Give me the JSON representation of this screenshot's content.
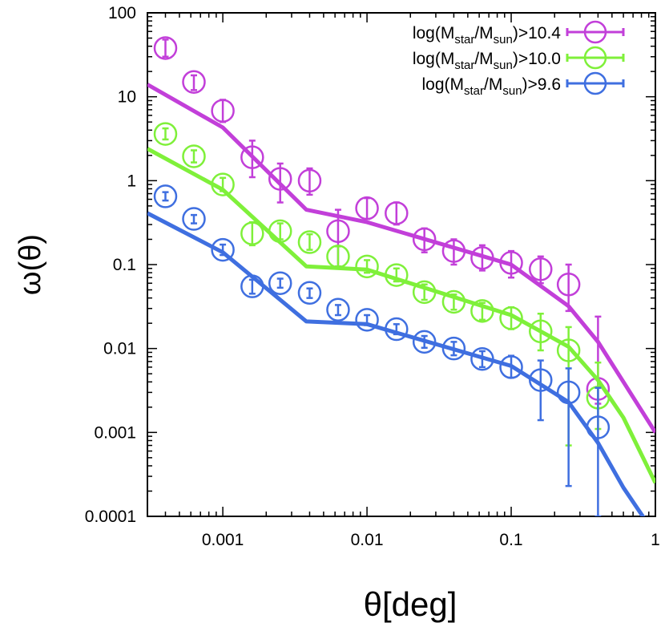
{
  "chart_data": {
    "type": "scatter",
    "title": "",
    "xlabel": "θ[deg]",
    "ylabel": "ω(θ)",
    "xscale": "log",
    "yscale": "log",
    "xlim": [
      0.0003,
      1
    ],
    "ylim": [
      0.0001,
      100
    ],
    "grid": false,
    "legend_position": "top-right",
    "x_ticks": [
      {
        "value": 0.001,
        "label": "0.001"
      },
      {
        "value": 0.01,
        "label": "0.01"
      },
      {
        "value": 0.1,
        "label": "0.1"
      },
      {
        "value": 1,
        "label": "1"
      }
    ],
    "y_ticks": [
      {
        "value": 100,
        "label": "100"
      },
      {
        "value": 10,
        "label": "10"
      },
      {
        "value": 1,
        "label": "1"
      },
      {
        "value": 0.1,
        "label": "0.1"
      },
      {
        "value": 0.01,
        "label": "0.01"
      },
      {
        "value": 0.001,
        "label": "0.001"
      },
      {
        "value": 0.0001,
        "label": "0.0001"
      }
    ],
    "series": [
      {
        "name": "log(Mstar/Msun)>10.4",
        "label_main": "log(M",
        "label_sub1": "star",
        "label_mid": "/M",
        "label_sub2": "sun",
        "label_end": ")>10.4",
        "color": "#c23fd9",
        "points": [
          {
            "x": 0.0004,
            "y": 38,
            "lo": 30,
            "hi": 48
          },
          {
            "x": 0.00063,
            "y": 15,
            "lo": 12,
            "hi": 18
          },
          {
            "x": 0.001,
            "y": 6.8,
            "lo": 5.0,
            "hi": 9.2
          },
          {
            "x": 0.0016,
            "y": 1.9,
            "lo": 1.1,
            "hi": 3.0
          },
          {
            "x": 0.0025,
            "y": 1.05,
            "lo": 0.55,
            "hi": 1.6
          },
          {
            "x": 0.004,
            "y": 1.0,
            "lo": 0.68,
            "hi": 1.4
          },
          {
            "x": 0.0063,
            "y": 0.25,
            "lo": 0.095,
            "hi": 0.45
          },
          {
            "x": 0.01,
            "y": 0.47,
            "lo": 0.35,
            "hi": 0.62
          },
          {
            "x": 0.016,
            "y": 0.41,
            "lo": 0.3,
            "hi": 0.55
          },
          {
            "x": 0.025,
            "y": 0.2,
            "lo": 0.14,
            "hi": 0.27
          },
          {
            "x": 0.04,
            "y": 0.145,
            "lo": 0.1,
            "hi": 0.2
          },
          {
            "x": 0.063,
            "y": 0.12,
            "lo": 0.085,
            "hi": 0.17
          },
          {
            "x": 0.1,
            "y": 0.105,
            "lo": 0.07,
            "hi": 0.145
          },
          {
            "x": 0.16,
            "y": 0.088,
            "lo": 0.06,
            "hi": 0.125
          },
          {
            "x": 0.25,
            "y": 0.058,
            "lo": 0.028,
            "hi": 0.1
          },
          {
            "x": 0.4,
            "y": 0.0033,
            "lo": 0.0022,
            "hi": 0.024
          }
        ],
        "model": {
          "x": [
            0.0003,
            0.001,
            0.0038,
            0.01,
            0.1,
            0.25,
            0.4,
            0.6,
            1.0
          ],
          "y": [
            14,
            4.3,
            0.45,
            0.32,
            0.1,
            0.032,
            0.012,
            0.004,
            0.001
          ]
        }
      },
      {
        "name": "log(Mstar/Msun)>10.0",
        "label_main": "log(M",
        "label_sub1": "star",
        "label_mid": "/M",
        "label_sub2": "sun",
        "label_end": ")>10.0",
        "color": "#7ff03a",
        "points": [
          {
            "x": 0.0004,
            "y": 3.6,
            "lo": 3.1,
            "hi": 4.2
          },
          {
            "x": 0.00063,
            "y": 1.95,
            "lo": 1.65,
            "hi": 2.3
          },
          {
            "x": 0.001,
            "y": 0.9,
            "lo": 0.75,
            "hi": 1.08
          },
          {
            "x": 0.0016,
            "y": 0.235,
            "lo": 0.17,
            "hi": 0.32
          },
          {
            "x": 0.0025,
            "y": 0.25,
            "lo": 0.2,
            "hi": 0.31
          },
          {
            "x": 0.004,
            "y": 0.185,
            "lo": 0.15,
            "hi": 0.23
          },
          {
            "x": 0.0063,
            "y": 0.125,
            "lo": 0.095,
            "hi": 0.165
          },
          {
            "x": 0.01,
            "y": 0.095,
            "lo": 0.08,
            "hi": 0.113
          },
          {
            "x": 0.016,
            "y": 0.075,
            "lo": 0.063,
            "hi": 0.09
          },
          {
            "x": 0.025,
            "y": 0.047,
            "lo": 0.038,
            "hi": 0.058
          },
          {
            "x": 0.04,
            "y": 0.036,
            "lo": 0.029,
            "hi": 0.044
          },
          {
            "x": 0.063,
            "y": 0.028,
            "lo": 0.022,
            "hi": 0.035
          },
          {
            "x": 0.1,
            "y": 0.023,
            "lo": 0.017,
            "hi": 0.031
          },
          {
            "x": 0.16,
            "y": 0.016,
            "lo": 0.0095,
            "hi": 0.026
          },
          {
            "x": 0.25,
            "y": 0.0095,
            "lo": 0.0007,
            "hi": 0.018
          },
          {
            "x": 0.4,
            "y": 0.0026,
            "lo": 0.0011,
            "hi": 0.0068
          }
        ],
        "model": {
          "x": [
            0.0003,
            0.001,
            0.0038,
            0.01,
            0.1,
            0.25,
            0.4,
            0.6,
            1.0
          ],
          "y": [
            2.4,
            0.78,
            0.095,
            0.087,
            0.025,
            0.0105,
            0.0042,
            0.0015,
            0.00025
          ]
        }
      },
      {
        "name": "log(Mstar/Msun)>9.6",
        "label_main": "log(M",
        "label_sub1": "star",
        "label_mid": "/M",
        "label_sub2": "sun",
        "label_end": ")>9.6",
        "color": "#3f6fe0",
        "points": [
          {
            "x": 0.0004,
            "y": 0.65,
            "lo": 0.58,
            "hi": 0.73
          },
          {
            "x": 0.00063,
            "y": 0.35,
            "lo": 0.31,
            "hi": 0.39
          },
          {
            "x": 0.001,
            "y": 0.15,
            "lo": 0.13,
            "hi": 0.173
          },
          {
            "x": 0.0016,
            "y": 0.055,
            "lo": 0.045,
            "hi": 0.066
          },
          {
            "x": 0.0025,
            "y": 0.06,
            "lo": 0.053,
            "hi": 0.068
          },
          {
            "x": 0.004,
            "y": 0.046,
            "lo": 0.04,
            "hi": 0.052
          },
          {
            "x": 0.0063,
            "y": 0.029,
            "lo": 0.025,
            "hi": 0.033
          },
          {
            "x": 0.01,
            "y": 0.022,
            "lo": 0.019,
            "hi": 0.025
          },
          {
            "x": 0.016,
            "y": 0.017,
            "lo": 0.0148,
            "hi": 0.0195
          },
          {
            "x": 0.025,
            "y": 0.012,
            "lo": 0.0102,
            "hi": 0.0141
          },
          {
            "x": 0.04,
            "y": 0.01,
            "lo": 0.0083,
            "hi": 0.012
          },
          {
            "x": 0.063,
            "y": 0.0075,
            "lo": 0.006,
            "hi": 0.0093
          },
          {
            "x": 0.1,
            "y": 0.006,
            "lo": 0.0045,
            "hi": 0.0082
          },
          {
            "x": 0.16,
            "y": 0.0042,
            "lo": 0.0014,
            "hi": 0.0072
          },
          {
            "x": 0.25,
            "y": 0.003,
            "lo": 0.00023,
            "hi": 0.0058
          },
          {
            "x": 0.4,
            "y": 0.00115,
            "lo": 0.0001,
            "hi": 0.0034
          }
        ],
        "model": {
          "x": [
            0.0003,
            0.001,
            0.0038,
            0.01,
            0.1,
            0.25,
            0.4,
            0.6,
            1.0
          ],
          "y": [
            0.41,
            0.14,
            0.021,
            0.0195,
            0.0062,
            0.0023,
            0.00075,
            0.00022,
            6e-05
          ]
        }
      }
    ]
  }
}
